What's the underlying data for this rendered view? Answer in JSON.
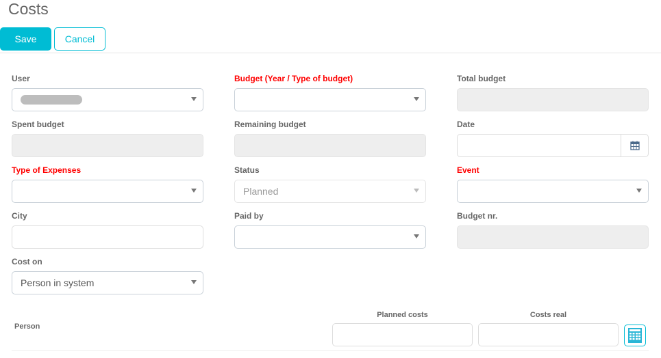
{
  "page": {
    "title": "Costs"
  },
  "toolbar": {
    "save_label": "Save",
    "cancel_label": "Cancel"
  },
  "form": {
    "user": {
      "label": "User",
      "value": ""
    },
    "budget": {
      "label": "Budget (Year / Type of budget)",
      "value": ""
    },
    "total_budget": {
      "label": "Total budget",
      "value": ""
    },
    "spent_budget": {
      "label": "Spent budget",
      "value": ""
    },
    "remaining_budget": {
      "label": "Remaining budget",
      "value": ""
    },
    "date": {
      "label": "Date",
      "value": ""
    },
    "type_of_expenses": {
      "label": "Type of Expenses",
      "value": ""
    },
    "status": {
      "label": "Status",
      "value": "Planned"
    },
    "event": {
      "label": "Event",
      "value": ""
    },
    "city": {
      "label": "City",
      "value": ""
    },
    "paid_by": {
      "label": "Paid by",
      "value": ""
    },
    "budget_nr": {
      "label": "Budget nr.",
      "value": ""
    },
    "cost_on": {
      "label": "Cost on",
      "value": "Person in system"
    }
  },
  "costs_table": {
    "person_label": "Person",
    "planned_label": "Planned costs",
    "real_label": "Costs real",
    "planned_value": "",
    "real_value": ""
  },
  "colors": {
    "accent": "#00bcd4",
    "required": "#ff0000"
  }
}
